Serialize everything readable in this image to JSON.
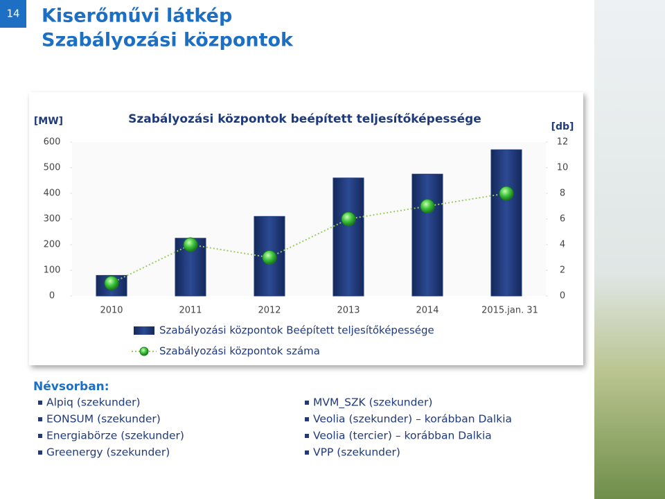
{
  "slide_number": "14",
  "title": [
    "Kiserőművi látkép",
    "Szabályozási központok"
  ],
  "chart_data": {
    "type": "bar_line",
    "title": "Szabályozási központok beépített teljesítőképessége",
    "y_label": "[MW]",
    "y2_label": "[db]",
    "categories": [
      "2010",
      "2011",
      "2012",
      "2013",
      "2014",
      "2015.jan. 31"
    ],
    "series": [
      {
        "name": "Szabályozási központok Beépített teljesítőképessége",
        "type": "bar",
        "color": "#1f3a7a",
        "values": [
          80,
          225,
          310,
          460,
          475,
          570
        ]
      },
      {
        "name": "Szabályozási központok száma",
        "type": "line",
        "color": "#3cc23c",
        "axis": "y2",
        "values": [
          1,
          4,
          3,
          6,
          7,
          8
        ]
      }
    ],
    "ylim": [
      0,
      600
    ],
    "yticks": [
      0,
      100,
      200,
      300,
      400,
      500,
      600
    ],
    "y2lim": [
      0,
      12
    ],
    "y2ticks": [
      0,
      2,
      4,
      6,
      8,
      10,
      12
    ]
  },
  "list": {
    "heading": "Névsorban:",
    "left": [
      "Alpiq (szekunder)",
      "EONSUM (szekunder)",
      "Energiabörze (szekunder)",
      "Greenergy (szekunder)"
    ],
    "right": [
      "MVM_SZK (szekunder)",
      "Veolia (szekunder) – korábban Dalkia",
      "Veolia (tercier) – korábban Dalkia",
      "VPP (szekunder)"
    ]
  }
}
